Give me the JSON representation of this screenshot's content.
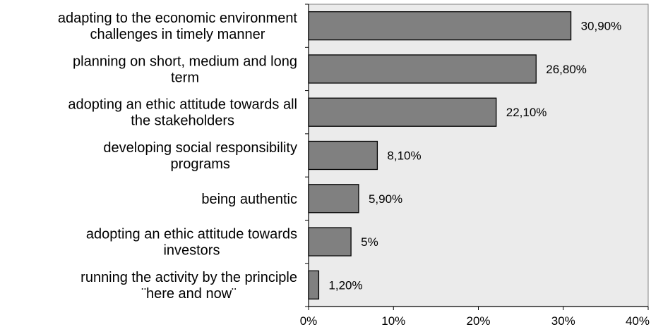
{
  "chart_data": {
    "type": "bar",
    "orientation": "horizontal",
    "categories": [
      [
        "adapting to the economic environment",
        "challenges in timely manner"
      ],
      [
        "planning on short, medium and long",
        "term"
      ],
      [
        "adopting an ethic attitude towards all",
        "the stakeholders"
      ],
      [
        "developing social responsibility",
        "programs"
      ],
      [
        "being authentic"
      ],
      [
        "adopting an ethic attitude towards",
        "investors"
      ],
      [
        "running the activity by the principle",
        "¨here and now¨"
      ]
    ],
    "values": [
      30.9,
      26.8,
      22.1,
      8.1,
      5.9,
      5,
      1.2
    ],
    "value_labels": [
      "30,90%",
      "26,80%",
      "22,10%",
      "8,10%",
      "5,90%",
      "5%",
      "1,20%"
    ],
    "xlim": [
      0,
      40
    ],
    "x_ticks": [
      0,
      10,
      20,
      30,
      40
    ],
    "x_tick_labels": [
      "0%",
      "10%",
      "20%",
      "30%",
      "40%"
    ],
    "title": "",
    "xlabel": "",
    "ylabel": "",
    "grid": false,
    "legend": "none",
    "colors": {
      "bar_fill": "#808080",
      "bar_stroke": "#000000",
      "plot_background": "#ebebeb",
      "plot_border": "#808080",
      "axis": "#000000"
    }
  }
}
